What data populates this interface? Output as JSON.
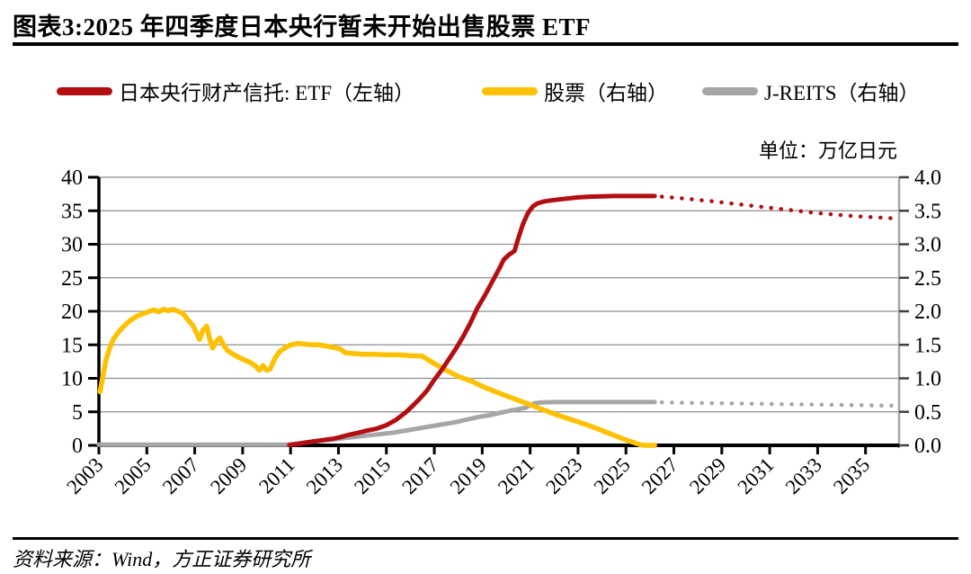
{
  "page": {
    "title": "图表3:2025 年四季度日本央行暂未开始出售股票 ETF",
    "unit_label": "单位：万亿日元",
    "source": "资料来源：Wind，方正证券研究所"
  },
  "legend": [
    {
      "label": "日本央行财产信托: ETF（左轴）",
      "color": "#b30e12"
    },
    {
      "label": "股票（右轴）",
      "color": "#fdc101"
    },
    {
      "label": "J-REITS（右轴）",
      "color": "#a6a6a6"
    }
  ],
  "style": {
    "grid_color": "#8e8e8e",
    "left_axis_color": "#000000",
    "bottom_axis_color": "#000000",
    "right_axis_color": "#a6a6a6",
    "right_tick_color": "#3f3f3f",
    "text_color": "#000000"
  },
  "chart_data": {
    "type": "line",
    "title": "2025 年四季度日本央行暂未开始出售股票 ETF",
    "unit": "万亿日元",
    "grid": true,
    "x_axis": {
      "range": [
        2003,
        2036.4
      ],
      "ticks": [
        2003,
        2005,
        2007,
        2009,
        2011,
        2013,
        2015,
        2017,
        2019,
        2021,
        2023,
        2025,
        2027,
        2029,
        2031,
        2033,
        2035
      ],
      "tick_labels": [
        "2003",
        "2005",
        "2007",
        "2009",
        "2011",
        "2013",
        "2015",
        "2017",
        "2019",
        "2021",
        "2023",
        "2025",
        "2027",
        "2029",
        "2031",
        "2033",
        "2035"
      ]
    },
    "left_axis": {
      "range": [
        0,
        40
      ],
      "ticks": [
        0,
        5,
        10,
        15,
        20,
        25,
        30,
        35,
        40
      ],
      "tick_labels": [
        "0",
        "5",
        "10",
        "15",
        "20",
        "25",
        "30",
        "35",
        "40"
      ]
    },
    "right_axis": {
      "range": [
        0,
        4
      ],
      "ticks": [
        0,
        0.5,
        1,
        1.5,
        2,
        2.5,
        3,
        3.5,
        4
      ],
      "tick_labels": [
        "0.0",
        "0.5",
        "1.0",
        "1.5",
        "2.0",
        "2.5",
        "3.0",
        "3.5",
        "4.0"
      ]
    },
    "series": [
      {
        "id": "jreits-actual",
        "name": "J-REITS（右轴）",
        "axis": "right",
        "style": "solid",
        "color": "#a6a6a6",
        "width": 5,
        "points": [
          [
            2003.0,
            0.01
          ],
          [
            2004,
            0.01
          ],
          [
            2005,
            0.01
          ],
          [
            2006,
            0.01
          ],
          [
            2007,
            0.01
          ],
          [
            2008,
            0.01
          ],
          [
            2009,
            0.01
          ],
          [
            2010,
            0.01
          ],
          [
            2010.9,
            0.01
          ],
          [
            2011.3,
            0.03
          ],
          [
            2011.8,
            0.05
          ],
          [
            2012.3,
            0.07
          ],
          [
            2012.8,
            0.09
          ],
          [
            2013.3,
            0.11
          ],
          [
            2013.8,
            0.13
          ],
          [
            2014.3,
            0.15
          ],
          [
            2014.8,
            0.17
          ],
          [
            2015.3,
            0.19
          ],
          [
            2015.8,
            0.22
          ],
          [
            2016.3,
            0.25
          ],
          [
            2016.8,
            0.28
          ],
          [
            2017.3,
            0.31
          ],
          [
            2017.8,
            0.34
          ],
          [
            2018.3,
            0.38
          ],
          [
            2018.8,
            0.42
          ],
          [
            2019.3,
            0.45
          ],
          [
            2019.8,
            0.49
          ],
          [
            2020.2,
            0.52
          ],
          [
            2020.5,
            0.54
          ],
          [
            2020.8,
            0.56
          ],
          [
            2021.0,
            0.6
          ],
          [
            2021.2,
            0.63
          ],
          [
            2021.5,
            0.64
          ],
          [
            2022.0,
            0.645
          ],
          [
            2023.0,
            0.645
          ],
          [
            2024.0,
            0.645
          ],
          [
            2025.0,
            0.645
          ],
          [
            2026.2,
            0.645
          ]
        ]
      },
      {
        "id": "jreits-forecast",
        "name": "J-REITS（右轴，预测虚线）",
        "axis": "right",
        "style": "dotted",
        "color": "#a6a6a6",
        "width": 4.5,
        "points": [
          [
            2026.5,
            0.64
          ],
          [
            2027.5,
            0.635
          ],
          [
            2028.5,
            0.63
          ],
          [
            2029.5,
            0.625
          ],
          [
            2030.5,
            0.62
          ],
          [
            2031.5,
            0.615
          ],
          [
            2032.5,
            0.61
          ],
          [
            2033.5,
            0.605
          ],
          [
            2034.5,
            0.6
          ],
          [
            2035.5,
            0.595
          ],
          [
            2036.3,
            0.59
          ]
        ]
      },
      {
        "id": "stocks",
        "name": "股票（右轴）",
        "axis": "right",
        "style": "solid",
        "color": "#fdc101",
        "width": 5.5,
        "points": [
          [
            2003.05,
            0.8
          ],
          [
            2003.15,
            1.0
          ],
          [
            2003.3,
            1.28
          ],
          [
            2003.45,
            1.45
          ],
          [
            2003.6,
            1.58
          ],
          [
            2003.8,
            1.68
          ],
          [
            2004.0,
            1.76
          ],
          [
            2004.3,
            1.86
          ],
          [
            2004.6,
            1.93
          ],
          [
            2004.9,
            1.97
          ],
          [
            2005.1,
            2.0
          ],
          [
            2005.3,
            2.02
          ],
          [
            2005.5,
            1.99
          ],
          [
            2005.7,
            2.03
          ],
          [
            2005.9,
            2.01
          ],
          [
            2006.1,
            2.03
          ],
          [
            2006.3,
            2.0
          ],
          [
            2006.5,
            1.97
          ],
          [
            2006.7,
            1.88
          ],
          [
            2006.9,
            1.8
          ],
          [
            2007.05,
            1.7
          ],
          [
            2007.2,
            1.58
          ],
          [
            2007.35,
            1.72
          ],
          [
            2007.5,
            1.78
          ],
          [
            2007.6,
            1.62
          ],
          [
            2007.75,
            1.45
          ],
          [
            2007.9,
            1.55
          ],
          [
            2008.05,
            1.6
          ],
          [
            2008.2,
            1.5
          ],
          [
            2008.35,
            1.42
          ],
          [
            2008.55,
            1.37
          ],
          [
            2008.8,
            1.32
          ],
          [
            2009.1,
            1.27
          ],
          [
            2009.35,
            1.23
          ],
          [
            2009.55,
            1.18
          ],
          [
            2009.7,
            1.12
          ],
          [
            2009.85,
            1.19
          ],
          [
            2010.0,
            1.12
          ],
          [
            2010.15,
            1.14
          ],
          [
            2010.35,
            1.3
          ],
          [
            2010.55,
            1.4
          ],
          [
            2010.8,
            1.46
          ],
          [
            2011.0,
            1.5
          ],
          [
            2011.3,
            1.52
          ],
          [
            2011.6,
            1.51
          ],
          [
            2011.9,
            1.5
          ],
          [
            2012.2,
            1.5
          ],
          [
            2012.5,
            1.48
          ],
          [
            2012.8,
            1.46
          ],
          [
            2013.05,
            1.44
          ],
          [
            2013.3,
            1.38
          ],
          [
            2013.6,
            1.37
          ],
          [
            2014.0,
            1.36
          ],
          [
            2014.5,
            1.36
          ],
          [
            2015.0,
            1.35
          ],
          [
            2015.5,
            1.35
          ],
          [
            2016.0,
            1.34
          ],
          [
            2016.5,
            1.33
          ],
          [
            2017.0,
            1.22
          ],
          [
            2017.5,
            1.12
          ],
          [
            2018.0,
            1.03
          ],
          [
            2018.6,
            0.95
          ],
          [
            2019.0,
            0.88
          ],
          [
            2019.7,
            0.78
          ],
          [
            2020.3,
            0.7
          ],
          [
            2020.9,
            0.62
          ],
          [
            2021.4,
            0.55
          ],
          [
            2022.0,
            0.47
          ],
          [
            2022.5,
            0.41
          ],
          [
            2023.0,
            0.35
          ],
          [
            2023.5,
            0.29
          ],
          [
            2024.0,
            0.22
          ],
          [
            2024.5,
            0.15
          ],
          [
            2025.0,
            0.08
          ],
          [
            2025.6,
            0.01
          ],
          [
            2025.8,
            0.0
          ],
          [
            2026.2,
            0.0
          ]
        ]
      },
      {
        "id": "etf-actual",
        "name": "日本央行财产信托: ETF（左轴）",
        "axis": "left",
        "style": "solid",
        "color": "#b30e12",
        "width": 5,
        "points": [
          [
            2010.95,
            0.05
          ],
          [
            2011.3,
            0.2
          ],
          [
            2011.7,
            0.45
          ],
          [
            2012.0,
            0.6
          ],
          [
            2012.4,
            0.8
          ],
          [
            2012.8,
            1.0
          ],
          [
            2013.1,
            1.25
          ],
          [
            2013.4,
            1.55
          ],
          [
            2013.8,
            1.85
          ],
          [
            2014.2,
            2.2
          ],
          [
            2014.6,
            2.5
          ],
          [
            2015.0,
            3.0
          ],
          [
            2015.4,
            3.8
          ],
          [
            2015.8,
            4.9
          ],
          [
            2016.1,
            5.9
          ],
          [
            2016.4,
            7.0
          ],
          [
            2016.7,
            8.2
          ],
          [
            2017.0,
            9.8
          ],
          [
            2017.3,
            11.2
          ],
          [
            2017.6,
            12.8
          ],
          [
            2017.9,
            14.4
          ],
          [
            2018.2,
            16.2
          ],
          [
            2018.5,
            18.2
          ],
          [
            2018.8,
            20.5
          ],
          [
            2019.1,
            22.3
          ],
          [
            2019.4,
            24.3
          ],
          [
            2019.7,
            26.3
          ],
          [
            2019.9,
            27.7
          ],
          [
            2020.1,
            28.4
          ],
          [
            2020.35,
            29.0
          ],
          [
            2020.5,
            30.8
          ],
          [
            2020.7,
            33.0
          ],
          [
            2020.9,
            34.6
          ],
          [
            2021.1,
            35.6
          ],
          [
            2021.3,
            36.1
          ],
          [
            2021.6,
            36.4
          ],
          [
            2022.0,
            36.6
          ],
          [
            2022.5,
            36.8
          ],
          [
            2023.0,
            37.0
          ],
          [
            2023.5,
            37.1
          ],
          [
            2024.0,
            37.15
          ],
          [
            2024.5,
            37.2
          ],
          [
            2025.0,
            37.2
          ],
          [
            2025.6,
            37.2
          ],
          [
            2026.2,
            37.2
          ]
        ]
      },
      {
        "id": "etf-forecast",
        "name": "日本央行财产信托: ETF（左轴，预测虚线）",
        "axis": "left",
        "style": "dotted",
        "color": "#b30e12",
        "width": 4.5,
        "points": [
          [
            2026.5,
            37.1
          ],
          [
            2027.0,
            36.95
          ],
          [
            2027.5,
            36.8
          ],
          [
            2028.0,
            36.6
          ],
          [
            2028.5,
            36.45
          ],
          [
            2029.0,
            36.25
          ],
          [
            2029.5,
            36.05
          ],
          [
            2030.0,
            35.85
          ],
          [
            2030.5,
            35.65
          ],
          [
            2031.0,
            35.45
          ],
          [
            2031.5,
            35.25
          ],
          [
            2032.0,
            35.05
          ],
          [
            2032.5,
            34.85
          ],
          [
            2033.0,
            34.65
          ],
          [
            2033.5,
            34.5
          ],
          [
            2034.0,
            34.35
          ],
          [
            2034.5,
            34.2
          ],
          [
            2035.0,
            34.1
          ],
          [
            2035.5,
            34.0
          ],
          [
            2036.0,
            33.9
          ],
          [
            2036.3,
            33.85
          ]
        ]
      }
    ]
  }
}
